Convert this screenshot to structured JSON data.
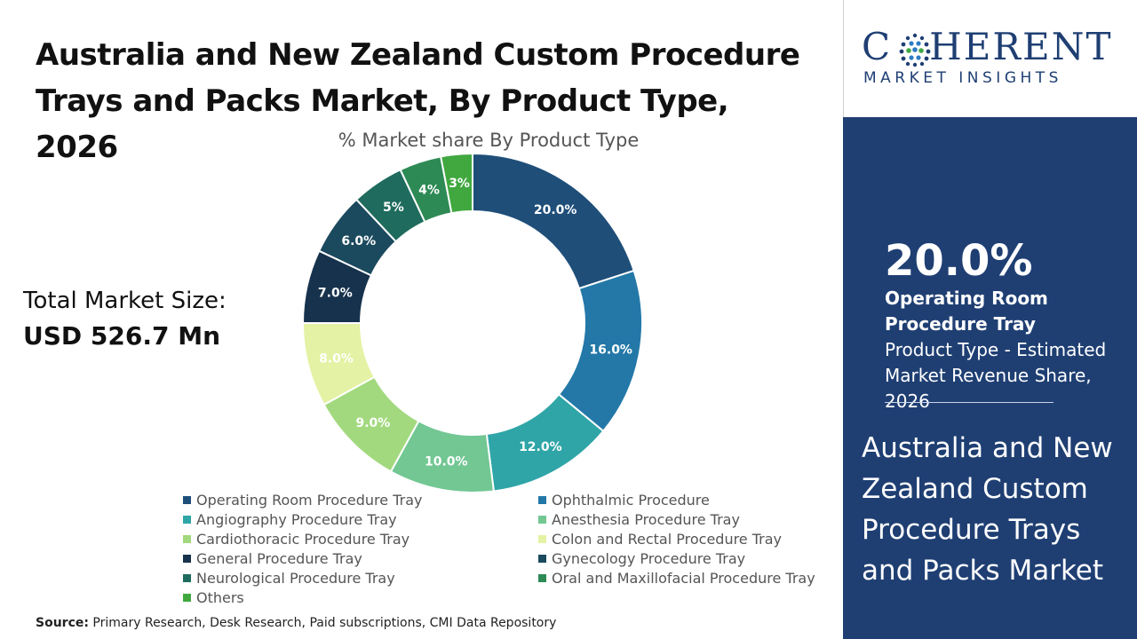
{
  "title_lines": [
    "Australia and New Zealand Custom Procedure",
    "Trays and Packs Market, By Product Type, 2026"
  ],
  "total": {
    "label": "Total Market Size:",
    "value": "USD 526.7 Mn"
  },
  "source": {
    "label": "Source:",
    "text": " Primary Research, Desk Research, Paid subscriptions, CMI Data Repository"
  },
  "logo": {
    "word_left": "C",
    "word_right": "HERENT",
    "sub": "MARKET INSIGHTS"
  },
  "panel": {
    "stat": "20.0%",
    "desc_bold": "Operating Room Procedure Tray",
    "desc_rest": " Product Type - Estimated Market Revenue Share, 2026",
    "title": "Australia and New Zealand Custom Procedure Trays and Packs Market"
  },
  "colors": {
    "panel_bg": "#1f3f73",
    "logo": "#1f3f73"
  },
  "chart_data": {
    "type": "pie",
    "subtitle": "% Market share By Product Type",
    "categories": [
      "Operating Room Procedure Tray",
      "Ophthalmic Procedure",
      "Angiography Procedure Tray",
      "Anesthesia Procedure Tray",
      "Cardiothoracic Procedure Tray",
      "Colon and Rectal Procedure Tray",
      "General Procedure Tray",
      "Gynecology Procedure Tray",
      "Neurological Procedure Tray",
      "Oral and Maxillofacial Procedure Tray",
      "Others"
    ],
    "values": [
      20.0,
      16.0,
      12.0,
      10.0,
      9.0,
      8.0,
      7.0,
      6.0,
      5.0,
      4.0,
      3.0
    ],
    "labels": [
      "20.0%",
      "16.0%",
      "12.0%",
      "10.0%",
      "9.0%",
      "8.0%",
      "7.0%",
      "6.0%",
      "5%",
      "4%",
      "3%"
    ],
    "colors": [
      "#1f4e79",
      "#2378a8",
      "#2fa5a7",
      "#72c793",
      "#a2d97e",
      "#e3f2a4",
      "#17324d",
      "#1b4a5e",
      "#1f6b5e",
      "#2e8a55",
      "#41a840"
    ],
    "legend_position": "bottom"
  }
}
